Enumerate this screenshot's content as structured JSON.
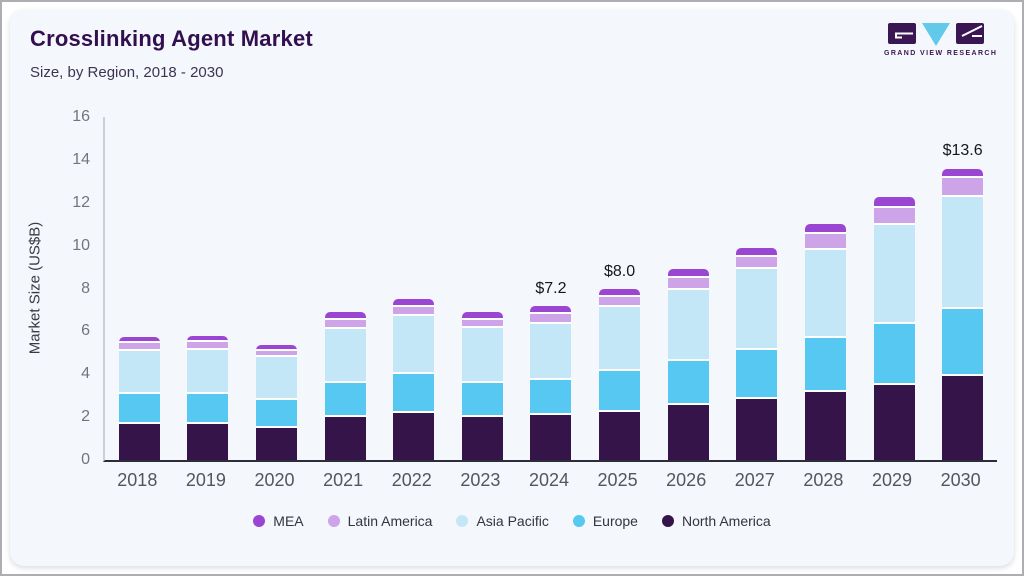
{
  "header": {
    "title": "Crosslinking Agent Market",
    "subtitle": "Size, by Region, 2018 - 2030",
    "brand": "GRAND VIEW RESEARCH"
  },
  "chart_data": {
    "type": "bar",
    "stacked": true,
    "title": "Crosslinking Agent Market Size, by Region, 2018 - 2030",
    "xlabel": "",
    "ylabel": "Market Size (US$B)",
    "ylim": [
      0,
      16
    ],
    "yticks": [
      0,
      2,
      4,
      6,
      8,
      10,
      12,
      14,
      16
    ],
    "grid": false,
    "legend_position": "bottom",
    "categories": [
      "2018",
      "2019",
      "2020",
      "2021",
      "2022",
      "2023",
      "2024",
      "2025",
      "2026",
      "2027",
      "2028",
      "2029",
      "2030"
    ],
    "series": [
      {
        "name": "North America",
        "color": "#351449",
        "values": [
          1.7,
          1.7,
          1.5,
          2.0,
          2.2,
          2.0,
          2.1,
          2.25,
          2.55,
          2.85,
          3.15,
          3.5,
          3.9
        ]
      },
      {
        "name": "Europe",
        "color": "#56c8f2",
        "values": [
          1.4,
          1.4,
          1.3,
          1.6,
          1.8,
          1.6,
          1.65,
          1.9,
          2.05,
          2.3,
          2.55,
          2.85,
          3.15
        ]
      },
      {
        "name": "Asia Pacific",
        "color": "#c4e7f8",
        "values": [
          2.0,
          2.05,
          2.0,
          2.5,
          2.7,
          2.55,
          2.6,
          3.0,
          3.35,
          3.75,
          4.1,
          4.6,
          5.2
        ]
      },
      {
        "name": "Latin America",
        "color": "#cda4e8",
        "values": [
          0.35,
          0.35,
          0.3,
          0.45,
          0.45,
          0.4,
          0.45,
          0.45,
          0.55,
          0.55,
          0.75,
          0.8,
          0.9
        ]
      },
      {
        "name": "MEA",
        "color": "#9b46d3",
        "values": [
          0.3,
          0.3,
          0.25,
          0.35,
          0.35,
          0.35,
          0.4,
          0.4,
          0.4,
          0.45,
          0.45,
          0.5,
          0.45
        ]
      }
    ],
    "annotations": [
      "",
      "",
      "",
      "",
      "",
      "",
      "$7.2",
      "$8.0",
      "",
      "",
      "",
      "",
      "$13.6"
    ],
    "legend_order": [
      "MEA",
      "Latin America",
      "Asia Pacific",
      "Europe",
      "North America"
    ]
  }
}
